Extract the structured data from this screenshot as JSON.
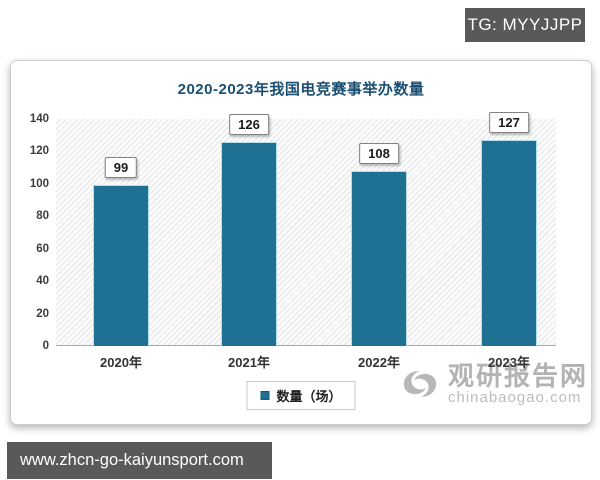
{
  "badge": {
    "text": "TG: MYYJJPP"
  },
  "chart_data": {
    "type": "bar",
    "title": "2020-2023年我国电竞赛事举办数量",
    "categories": [
      "2020年",
      "2021年",
      "2022年",
      "2023年"
    ],
    "values": [
      99,
      126,
      108,
      127
    ],
    "ylim": [
      0,
      140
    ],
    "yticks": [
      0,
      20,
      40,
      60,
      80,
      100,
      120,
      140
    ],
    "legend": "数量（场）",
    "legend_position": "bottom",
    "grid": "none",
    "plot_background": "diagonal-hatch",
    "bar_color": "#1f7194",
    "title_color": "#1b4f72"
  },
  "watermark": {
    "site_name": "观研报告网",
    "site_domain": "chinabaogao.com"
  },
  "footer": {
    "url": "www.zhcn-go-kaiyunsport.com"
  }
}
